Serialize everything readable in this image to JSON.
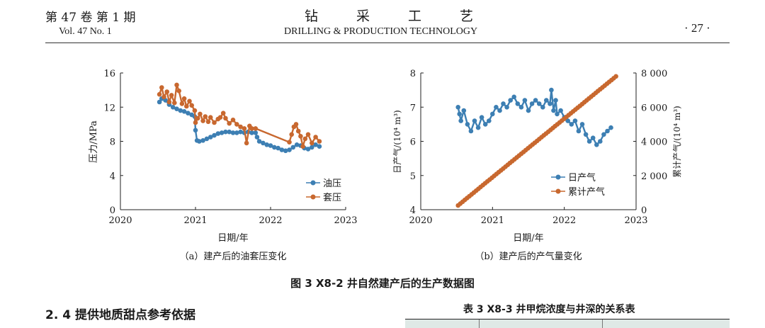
{
  "header": {
    "volume_issue": "第 47 卷  第 1 期",
    "volume_issue_en": "Vol. 47    No. 1",
    "journal_cn": "钻采工艺",
    "journal_en": "DRILLING & PRODUCTION TECHNOLOGY",
    "page": "· 27 ·"
  },
  "colors": {
    "blue": "#3d7fb3",
    "orange": "#c8682f"
  },
  "figure": {
    "title": "图 3    X8-2 井自然建产后的生产数据图",
    "panel_a_caption": "（a）建产后的油套压变化",
    "panel_b_caption": "（b）建产后的产气量变化"
  },
  "section_heading": "2. 4    提供地质甜点参考依据",
  "table_title": "表 3    X8-3 井甲烷浓度与井深的关系表",
  "chart_data": [
    {
      "type": "line",
      "xlabel": "日期/年",
      "ylabel": "压力/MPa",
      "xlim": [
        2020,
        2023
      ],
      "ylim": [
        0,
        16
      ],
      "xticks": [
        2020,
        2021,
        2022,
        2023
      ],
      "yticks": [
        0,
        4,
        8,
        12,
        16
      ],
      "legend_position": "bottom-right",
      "series": [
        {
          "name": "油压",
          "color": "#3d7fb3",
          "x": [
            2020.52,
            2020.55,
            2020.6,
            2020.65,
            2020.7,
            2020.75,
            2020.8,
            2020.85,
            2020.9,
            2020.95,
            2020.99,
            2021.0,
            2021.02,
            2021.05,
            2021.1,
            2021.15,
            2021.2,
            2021.25,
            2021.3,
            2021.35,
            2021.4,
            2021.45,
            2021.5,
            2021.55,
            2021.6,
            2021.65,
            2021.7,
            2021.75,
            2021.8,
            2021.82,
            2021.85,
            2021.9,
            2021.95,
            2022.0,
            2022.05,
            2022.1,
            2022.15,
            2022.2,
            2022.25,
            2022.3,
            2022.35,
            2022.4,
            2022.45,
            2022.5,
            2022.55,
            2022.6,
            2022.65
          ],
          "y": [
            12.6,
            13.0,
            12.8,
            12.3,
            12.0,
            11.8,
            11.6,
            11.5,
            11.3,
            11.1,
            10.9,
            9.3,
            8.1,
            8.0,
            8.1,
            8.3,
            8.5,
            8.7,
            8.9,
            9.0,
            9.1,
            9.1,
            9.0,
            9.0,
            9.1,
            9.0,
            9.1,
            9.0,
            9.0,
            8.5,
            8.0,
            7.8,
            7.6,
            7.5,
            7.3,
            7.2,
            7.0,
            6.9,
            7.0,
            7.3,
            7.6,
            7.5,
            7.2,
            7.1,
            7.3,
            7.6,
            7.4
          ]
        },
        {
          "name": "套压",
          "color": "#c8682f",
          "x": [
            2020.52,
            2020.55,
            2020.58,
            2020.62,
            2020.65,
            2020.68,
            2020.72,
            2020.75,
            2020.78,
            2020.82,
            2020.85,
            2020.88,
            2020.92,
            2020.95,
            2020.99,
            2021.0,
            2021.03,
            2021.06,
            2021.1,
            2021.13,
            2021.17,
            2021.2,
            2021.25,
            2021.3,
            2021.33,
            2021.37,
            2021.4,
            2021.45,
            2021.5,
            2021.55,
            2021.6,
            2021.65,
            2021.68,
            2021.72,
            2021.75,
            2021.8,
            2022.25,
            2022.28,
            2022.31,
            2022.34,
            2022.37,
            2022.4,
            2022.43,
            2022.46,
            2022.5,
            2022.55,
            2022.6,
            2022.65
          ],
          "y": [
            13.5,
            14.3,
            13.2,
            13.8,
            12.6,
            13.4,
            12.5,
            14.6,
            13.9,
            12.4,
            13.0,
            12.1,
            12.7,
            12.2,
            11.6,
            10.2,
            10.7,
            11.2,
            10.4,
            10.9,
            10.3,
            10.8,
            10.2,
            10.6,
            10.8,
            11.3,
            10.7,
            10.1,
            10.5,
            10.0,
            9.7,
            9.5,
            7.8,
            9.8,
            9.5,
            9.5,
            7.9,
            8.8,
            9.7,
            10.0,
            9.2,
            8.6,
            7.4,
            8.3,
            8.8,
            7.8,
            8.5,
            8.0
          ]
        }
      ]
    },
    {
      "type": "line",
      "xlabel": "日期/年",
      "ylabel": "日产气/(10⁴ m³)",
      "y2label": "累计产气/(10⁴ m³)",
      "xlim": [
        2020,
        2023
      ],
      "ylim": [
        4,
        8
      ],
      "y2lim": [
        0,
        8000
      ],
      "xticks": [
        2020,
        2021,
        2022,
        2023
      ],
      "yticks": [
        4,
        5,
        6,
        7,
        8
      ],
      "y2ticks": [
        0,
        2000,
        4000,
        6000,
        8000
      ],
      "y2ticklabels": [
        "0",
        "2 000",
        "4 000",
        "6 000",
        "8 000"
      ],
      "legend_position": "bottom-right",
      "series": [
        {
          "name": "日产气",
          "axis": "left",
          "color": "#3d7fb3",
          "x": [
            2020.52,
            2020.54,
            2020.56,
            2020.6,
            2020.65,
            2020.7,
            2020.75,
            2020.8,
            2020.85,
            2020.9,
            2020.95,
            2021.0,
            2021.05,
            2021.1,
            2021.15,
            2021.2,
            2021.25,
            2021.3,
            2021.35,
            2021.4,
            2021.45,
            2021.5,
            2021.55,
            2021.6,
            2021.65,
            2021.7,
            2021.75,
            2021.8,
            2021.82,
            2021.85,
            2021.88,
            2021.9,
            2021.95,
            2022.0,
            2022.05,
            2022.1,
            2022.15,
            2022.2,
            2022.25,
            2022.3,
            2022.35,
            2022.4,
            2022.45,
            2022.5,
            2022.55,
            2022.6,
            2022.65
          ],
          "y": [
            7.0,
            6.8,
            6.6,
            6.9,
            6.5,
            6.3,
            6.6,
            6.4,
            6.7,
            6.5,
            6.6,
            6.8,
            7.0,
            6.9,
            7.1,
            7.0,
            7.2,
            7.3,
            7.1,
            7.0,
            7.2,
            6.9,
            7.1,
            7.2,
            7.1,
            7.0,
            7.2,
            7.1,
            7.5,
            6.9,
            7.2,
            6.8,
            6.9,
            6.7,
            6.6,
            6.5,
            6.6,
            6.3,
            6.5,
            6.2,
            6.0,
            6.1,
            5.9,
            6.0,
            6.2,
            6.3,
            6.4
          ]
        },
        {
          "name": "累计产气",
          "axis": "right",
          "color": "#c8682f",
          "x": [
            2020.52,
            2022.72
          ],
          "y": [
            250,
            7800
          ]
        }
      ]
    }
  ]
}
